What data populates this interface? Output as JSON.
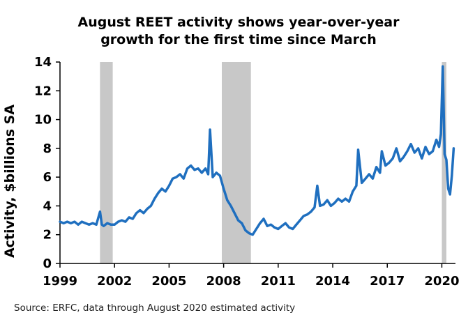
{
  "chart_data": {
    "type": "line",
    "title_lines": [
      "August REET activity shows year-over-year",
      "growth for the first time since March"
    ],
    "ylabel": "Activity, $billions SA",
    "xlabel": "",
    "source": "Source: ERFC, data through August 2020 estimated activity",
    "xlim": [
      1999,
      2020.75
    ],
    "ylim": [
      0,
      14
    ],
    "x_ticks": [
      {
        "value": 1999,
        "label": "1999"
      },
      {
        "value": 2002,
        "label": "2002"
      },
      {
        "value": 2005,
        "label": "2005"
      },
      {
        "value": 2008,
        "label": "2008"
      },
      {
        "value": 2011,
        "label": "2011"
      },
      {
        "value": 2014,
        "label": "2014"
      },
      {
        "value": 2017,
        "label": "2017"
      },
      {
        "value": 2020,
        "label": "2020"
      }
    ],
    "y_ticks": [
      {
        "value": 0,
        "label": "0"
      },
      {
        "value": 2,
        "label": "2"
      },
      {
        "value": 4,
        "label": "4"
      },
      {
        "value": 6,
        "label": "6"
      },
      {
        "value": 8,
        "label": "8"
      },
      {
        "value": 10,
        "label": "10"
      },
      {
        "value": 12,
        "label": "12"
      },
      {
        "value": 14,
        "label": "14"
      }
    ],
    "grid": false,
    "line_color": "#1f6fbf",
    "recession_color": "#c8c8c8",
    "recessions": [
      [
        2001.2,
        2001.9
      ],
      [
        2007.9,
        2009.5
      ],
      [
        2020.0,
        2020.25
      ]
    ],
    "series": [
      {
        "x": [
          1999.0,
          1999.2,
          1999.4,
          1999.6,
          1999.8,
          2000.0,
          2000.2,
          2000.4,
          2000.6,
          2000.8,
          2001.0,
          2001.2,
          2001.3,
          2001.4,
          2001.6,
          2001.8,
          2002.0,
          2002.2,
          2002.4,
          2002.6,
          2002.8,
          2003.0,
          2003.2,
          2003.4,
          2003.6,
          2003.8,
          2004.0,
          2004.2,
          2004.4,
          2004.6,
          2004.8,
          2005.0,
          2005.2,
          2005.4,
          2005.6,
          2005.8,
          2006.0,
          2006.2,
          2006.4,
          2006.6,
          2006.8,
          2007.0,
          2007.15,
          2007.25,
          2007.4,
          2007.6,
          2007.8,
          2008.0,
          2008.2,
          2008.4,
          2008.6,
          2008.8,
          2009.0,
          2009.2,
          2009.4,
          2009.6,
          2009.8,
          2010.0,
          2010.2,
          2010.4,
          2010.6,
          2010.8,
          2011.0,
          2011.2,
          2011.4,
          2011.6,
          2011.8,
          2012.0,
          2012.2,
          2012.4,
          2012.6,
          2012.8,
          2013.0,
          2013.15,
          2013.3,
          2013.5,
          2013.7,
          2013.9,
          2014.1,
          2014.3,
          2014.5,
          2014.7,
          2014.9,
          2015.1,
          2015.3,
          2015.4,
          2015.6,
          2015.8,
          2016.0,
          2016.2,
          2016.4,
          2016.6,
          2016.7,
          2016.9,
          2017.1,
          2017.3,
          2017.5,
          2017.7,
          2017.9,
          2018.1,
          2018.3,
          2018.5,
          2018.7,
          2018.9,
          2019.1,
          2019.3,
          2019.5,
          2019.7,
          2019.85,
          2019.95,
          2020.05,
          2020.15,
          2020.25,
          2020.35,
          2020.45,
          2020.55,
          2020.65
        ],
        "y": [
          2.9,
          2.8,
          2.9,
          2.8,
          2.9,
          2.7,
          2.9,
          2.8,
          2.7,
          2.8,
          2.7,
          3.6,
          2.7,
          2.6,
          2.8,
          2.7,
          2.7,
          2.9,
          3.0,
          2.9,
          3.2,
          3.1,
          3.5,
          3.7,
          3.5,
          3.8,
          4.0,
          4.5,
          4.9,
          5.2,
          5.0,
          5.4,
          5.9,
          6.0,
          6.2,
          5.9,
          6.6,
          6.8,
          6.5,
          6.6,
          6.3,
          6.6,
          6.2,
          9.3,
          6.0,
          6.3,
          6.1,
          5.2,
          4.4,
          4.0,
          3.5,
          3.0,
          2.8,
          2.3,
          2.1,
          2.0,
          2.4,
          2.8,
          3.1,
          2.6,
          2.7,
          2.5,
          2.4,
          2.6,
          2.8,
          2.5,
          2.4,
          2.7,
          3.0,
          3.3,
          3.4,
          3.6,
          3.9,
          5.4,
          4.0,
          4.1,
          4.4,
          4.0,
          4.2,
          4.5,
          4.3,
          4.5,
          4.3,
          5.0,
          5.4,
          7.9,
          5.6,
          5.9,
          6.2,
          5.9,
          6.7,
          6.3,
          7.8,
          6.8,
          7.0,
          7.3,
          8.0,
          7.1,
          7.4,
          7.8,
          8.3,
          7.7,
          8.0,
          7.3,
          8.1,
          7.6,
          7.8,
          8.6,
          8.1,
          9.0,
          13.7,
          7.6,
          7.2,
          5.2,
          4.8,
          6.1,
          8.0
        ]
      }
    ]
  }
}
